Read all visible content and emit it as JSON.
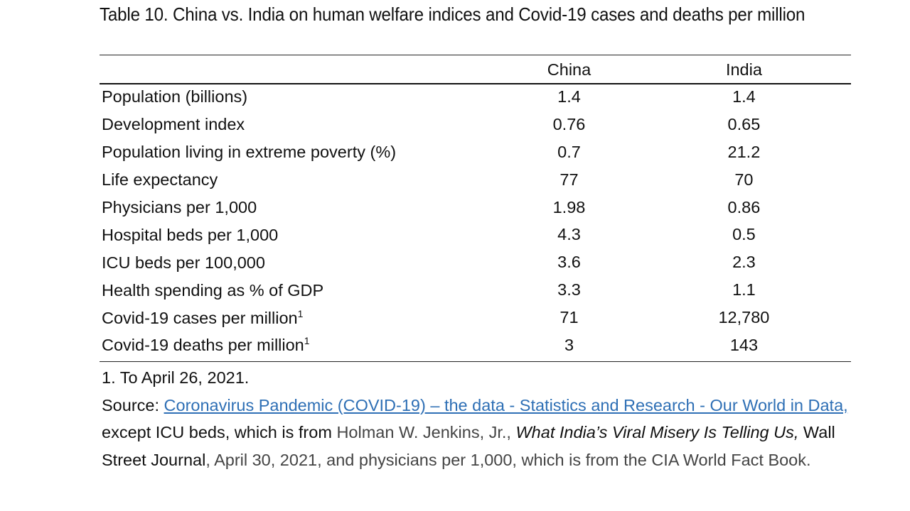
{
  "title": "Table 10. China vs. India on human welfare indices and Covid-19 cases and deaths per million",
  "columns": [
    "",
    "China",
    "India"
  ],
  "rows": [
    {
      "label": "Population (billions)",
      "sup": "",
      "china": "1.4",
      "india": "1.4"
    },
    {
      "label": "Development index",
      "sup": "",
      "china": "0.76",
      "india": "0.65"
    },
    {
      "label": "Population living in extreme poverty (%)",
      "sup": "",
      "china": "0.7",
      "india": "21.2"
    },
    {
      "label": "Life expectancy",
      "sup": "",
      "china": "77",
      "india": "70"
    },
    {
      "label": "Physicians per 1,000",
      "sup": "",
      "china": "1.98",
      "india": "0.86"
    },
    {
      "label": "Hospital beds per 1,000",
      "sup": "",
      "china": "4.3",
      "india": "0.5"
    },
    {
      "label": "ICU beds per 100,000",
      "sup": "",
      "china": "3.6",
      "india": "2.3"
    },
    {
      "label": "Health spending as % of GDP",
      "sup": "",
      "china": "3.3",
      "india": "1.1"
    },
    {
      "label": "Covid-19 cases per million",
      "sup": "1",
      "china": "71",
      "india": "12,780"
    },
    {
      "label": "Covid-19 deaths per million",
      "sup": "1",
      "china": "3",
      "india": "143"
    }
  ],
  "notes": {
    "footnote": "1. To April 26, 2021.",
    "source_label": "Source: ",
    "source_link": "Coronavirus Pandemic (COVID-19) – the data - Statistics and Research - Our World in Data, ",
    "text1": "except ICU beds, which is from ",
    "author": "Holman W. Jenkins, Jr., ",
    "article": "What India’s Viral Misery Is Telling Us,",
    "text2": " Wall Street Journal",
    "date": ", April 30, 2021, and physicians per 1,000, which is from the CIA World Fact Book."
  },
  "colors": {
    "link": "#2e6fb5",
    "text": "#111111",
    "muted": "#444444"
  }
}
